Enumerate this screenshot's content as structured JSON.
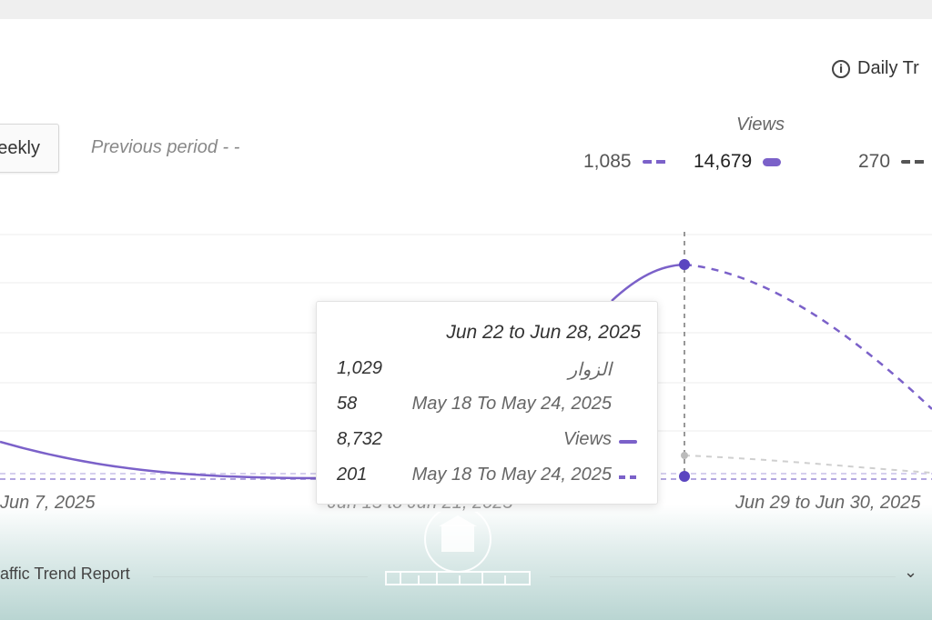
{
  "header": {
    "daily_label": "Daily Tr",
    "weekly_label": "eekly",
    "previous_period_label": "Previous period - -"
  },
  "metrics": {
    "views_label": "Views",
    "previous_views": "1,085",
    "current_views": "14,679",
    "other_value": "270"
  },
  "chart_data": {
    "type": "line",
    "x_labels": [
      "Jun 7, 2025",
      "Jun 15 to Jun 21, 2025",
      "Jun 29 to Jun 30, 2025"
    ],
    "series": [
      {
        "name": "Views",
        "style": "solid",
        "color": "#7b61c9"
      },
      {
        "name": "Views",
        "style": "dashed",
        "color": "#7b61c9"
      }
    ],
    "highlight_date": "Jun 22 to Jun 28, 2025",
    "grid": true
  },
  "tooltip": {
    "title": "Jun 22 to Jun 28, 2025",
    "rows": [
      {
        "value": "1,029",
        "label": "الزوار",
        "icon": "none"
      },
      {
        "value": "58",
        "label": "May 18 To May 24, 2025",
        "icon": "none"
      },
      {
        "value": "8,732",
        "label": "Views",
        "icon": "solid-line-icon"
      },
      {
        "value": "201",
        "label": "May 18 To May 24, 2025",
        "icon": "dashed-line-icon"
      }
    ]
  },
  "footer": {
    "report_title": "affic Trend Report",
    "chevron": "⌄"
  },
  "colors": {
    "accent": "#7b61c9",
    "footer_band": "#b9d5d2"
  }
}
